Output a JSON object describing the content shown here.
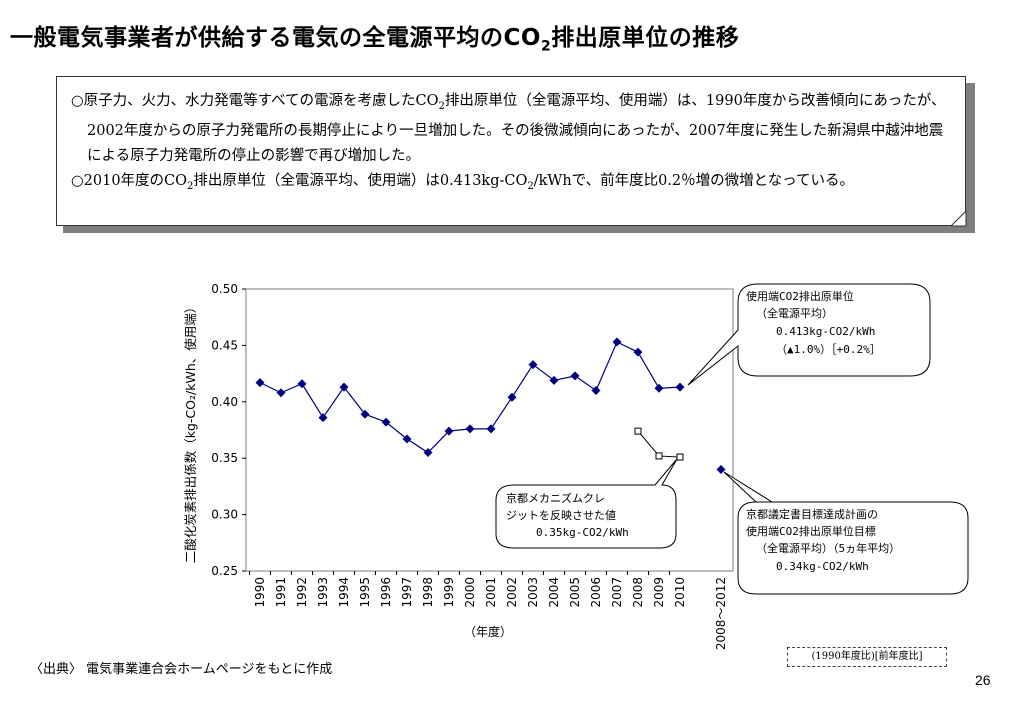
{
  "header": {
    "title_main": "一般電気事業者が供給する電気の全電源平均のCO",
    "title_sub": "2",
    "title_tail": "排出原単位の推移"
  },
  "note": {
    "p1_a": "○原子力、火力、水力発電等すべての電源を考慮したCO",
    "p1_sub": "2",
    "p1_b": "排出原単位（全電源平均、使用端）は、1990年度から改善傾向にあったが、2002年度からの原子力発電所の長期停止により一旦増加した。その後微減傾向にあったが、2007年度に発生した新潟県中越沖地震による原子力発電所の停止の影響で再び増加した。",
    "p2_a": "○2010年度のCO",
    "p2_sub": "2",
    "p2_b": "排出原単位（全電源平均、使用端）は0.413kg-CO",
    "p2_sub2": "2",
    "p2_c": "/kWhで、前年度比0.2％増の微増となっている。"
  },
  "chart_data": {
    "type": "line",
    "ylabel": "二酸化炭素排出係数（kg-CO₂/kWh、使用端）",
    "xlabel": "（年度）",
    "ylim": [
      0.25,
      0.5
    ],
    "yticks": [
      "0.25",
      "0.30",
      "0.35",
      "0.40",
      "0.45",
      "0.50"
    ],
    "categories": [
      "1990",
      "1991",
      "1992",
      "1993",
      "1994",
      "1995",
      "1996",
      "1997",
      "1998",
      "1999",
      "2000",
      "2001",
      "2002",
      "2003",
      "2004",
      "2005",
      "2006",
      "2007",
      "2008",
      "2009",
      "2010"
    ],
    "series": [
      {
        "values": [
          0.417,
          0.408,
          0.416,
          0.386,
          0.413,
          0.389,
          0.382,
          0.367,
          0.355,
          0.374,
          0.376,
          0.376,
          0.404,
          0.433,
          0.419,
          0.423,
          0.41,
          0.453,
          0.444,
          0.412,
          0.413
        ],
        "marker": "diamond",
        "color": "#000080"
      },
      {
        "x": [
          "2008",
          "2009",
          "2010"
        ],
        "values": [
          0.374,
          0.352,
          0.351
        ],
        "marker": "square-open",
        "color": "#000000"
      }
    ],
    "target": {
      "label": "2008～2012",
      "value": 0.34
    },
    "annotations": {
      "callout1": [
        "使用端CO2排出原単位",
        "（全電源平均）",
        "0.413kg-CO2/kWh",
        "（▲1.0%）［+0.2%］"
      ],
      "callout2": [
        "京都メカニズムクレ",
        "ジットを反映させた値",
        "0.35kg-CO2/kWh"
      ],
      "callout3": [
        "京都議定書目標達成計画の",
        "使用端CO2排出原単位目標",
        "（全電源平均）（5ヵ年平均）",
        "0.34kg-CO2/kWh"
      ]
    }
  },
  "legend_note": "(1990年度比)[前年度比]",
  "footer": {
    "source": "〈出典〉 電気事業連合会ホームページをもとに作成",
    "page": "26"
  }
}
